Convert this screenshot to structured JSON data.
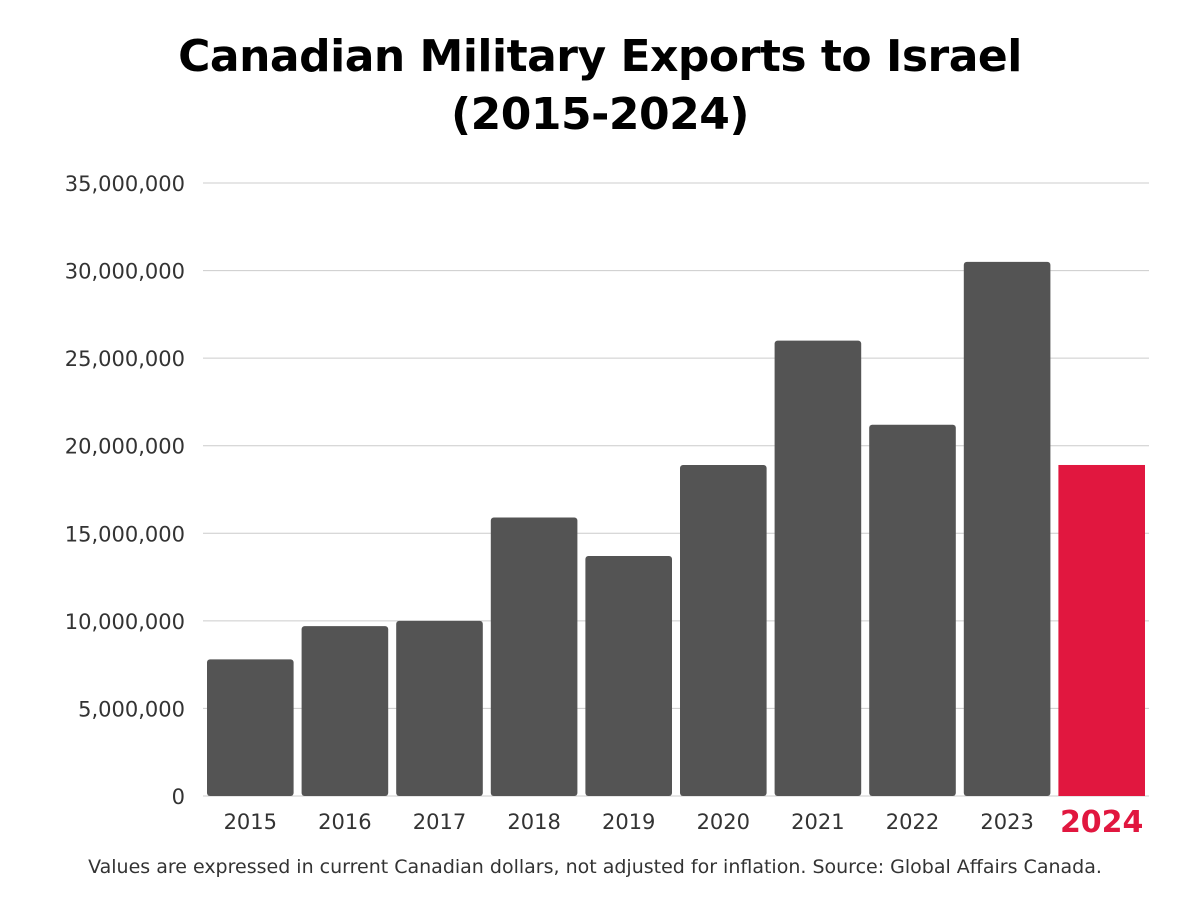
{
  "chart_data": {
    "type": "bar",
    "title_lines": [
      "Canadian Military Exports to Israel",
      "(2015-2024)"
    ],
    "xlabel": "",
    "ylabel": "",
    "categories": [
      "2015",
      "2016",
      "2017",
      "2018",
      "2019",
      "2020",
      "2021",
      "2022",
      "2023",
      "2024"
    ],
    "values": [
      7800000,
      9700000,
      10000000,
      15900000,
      13700000,
      18900000,
      26000000,
      21200000,
      30500000,
      18900000
    ],
    "highlight_category": "2024",
    "ylim": [
      0,
      35000000
    ],
    "yticks": [
      0,
      5000000,
      10000000,
      15000000,
      20000000,
      25000000,
      30000000,
      35000000
    ],
    "ytick_labels": [
      "0",
      "5,000,000",
      "10,000,000",
      "15,000,000",
      "20,000,000",
      "25,000,000",
      "30,000,000",
      "35,000,000"
    ],
    "grid": true,
    "legend": "none",
    "colors": {
      "bar": "#545454",
      "highlight": "#e1173f",
      "grid": "#cccccc",
      "tick_text": "#333333"
    }
  },
  "footnote": "Values are expressed in current Canadian dollars, not adjusted for inflation. Source: Global Affairs Canada."
}
